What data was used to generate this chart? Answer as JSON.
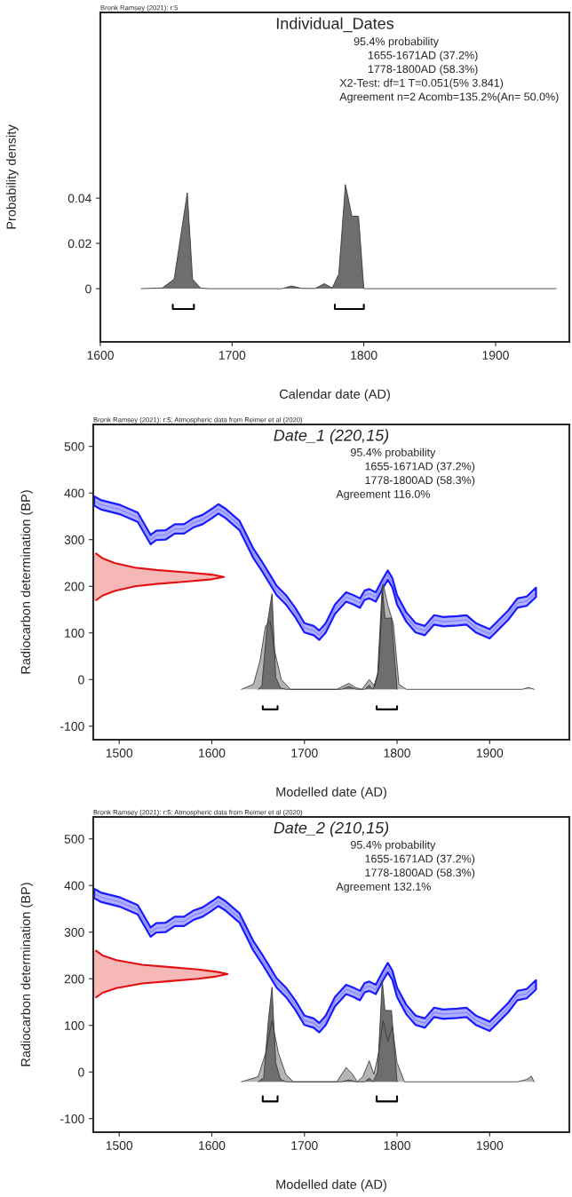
{
  "chart_data": [
    {
      "type": "area",
      "title": "Individual_Dates",
      "xlabel": "Calendar date (AD)",
      "ylabel": "Probability density",
      "annotations": [
        "Bronk Ramsey (2021): r:5",
        "95.4% probability",
        "1655-1671AD (37.2%)",
        "1778-1800AD (58.3%)",
        "X2-Test: df=1 T=0.051(5% 3.841)",
        "Agreement n=2 Acomb=135.2%(An= 50.0%)"
      ],
      "xlim": [
        1600,
        1956
      ],
      "ylim": [
        -0.0235,
        0.122
      ],
      "xticks": [
        1600,
        1700,
        1800,
        1900
      ],
      "yticks": [
        0,
        0.02,
        0.04
      ],
      "series": [
        {
          "color": "#6e6e6e",
          "x": [
            1631,
            1647,
            1656,
            1666,
            1670,
            1676,
            1682,
            1738,
            1745,
            1753,
            1763,
            1770,
            1776,
            1781,
            1786,
            1791,
            1796,
            1800,
            1946
          ],
          "values": [
            0,
            0.0003,
            0.0042,
            0.0424,
            0.0042,
            0.0003,
            0,
            0,
            0.0012,
            0.0001,
            0.0001,
            0.0022,
            0.0003,
            0.0065,
            0.046,
            0.032,
            0.032,
            0,
            0
          ]
        },
        {
          "type": "line",
          "color": "#000000",
          "x": [
            1655,
            1655,
            1671,
            1671
          ],
          "values": [
            -0.007,
            -0.009,
            -0.009,
            -0.007
          ]
        },
        {
          "type": "line",
          "color": "#000000",
          "x": [
            1778,
            1778,
            1800,
            1800
          ],
          "values": [
            -0.007,
            -0.009,
            -0.009,
            -0.007
          ]
        }
      ]
    },
    {
      "type": "area",
      "title": "Date_1 (220,15)",
      "xlabel": "Modelled date (AD)",
      "ylabel": "Radiocarbon determination (BP)",
      "annotations": [
        "Bronk Ramsey (2021): r:5; Atmospheric data from Reimer et al (2020)",
        "95.4% probability",
        "1655-1671AD (37.2%)",
        "1778-1800AD (58.3%)",
        "Agreement 116.0%"
      ],
      "xlim": [
        1472,
        1986
      ],
      "ylim": [
        -129,
        547
      ],
      "xticks": [
        1500,
        1600,
        1700,
        1800,
        1900
      ],
      "yticks": [
        -100,
        0,
        100,
        200,
        300,
        400,
        500
      ],
      "series": [
        {
          "color": "#b4b4b4",
          "x": [
            1632,
            1645,
            1652,
            1658,
            1663,
            1668,
            1675,
            1685,
            1735,
            1748,
            1755,
            1762,
            1770,
            1776,
            1780,
            1785,
            1790,
            1796,
            1802,
            1810,
            1935,
            1942,
            1948
          ],
          "values": [
            -21,
            -10,
            40,
            115,
            125,
            60,
            0,
            -21,
            -21,
            -8,
            -17,
            -21,
            0,
            -14,
            20,
            205,
            160,
            120,
            -10,
            -21,
            -21,
            -17,
            -21
          ]
        },
        {
          "color": "#6e6e6e",
          "x": [
            1650,
            1654,
            1660,
            1665,
            1669,
            1674,
            1680,
            1740,
            1748,
            1756,
            1765,
            1770,
            1774,
            1779,
            1784,
            1787,
            1794,
            1800
          ],
          "values": [
            -21,
            -14,
            121,
            184,
            5,
            -18,
            -21,
            -21,
            -15,
            -21,
            -21,
            -12,
            -21,
            12,
            201,
            131,
            132,
            -21
          ]
        },
        {
          "type": "line",
          "color": "#1a1aff",
          "x": [
            1473,
            1480,
            1500,
            1520,
            1534,
            1540,
            1550,
            1560,
            1570,
            1580,
            1590,
            1600,
            1607,
            1615,
            1630,
            1645,
            1655,
            1663,
            1670,
            1680,
            1690,
            1700,
            1710,
            1716,
            1723,
            1733,
            1745,
            1753,
            1760,
            1765,
            1770,
            1777,
            1785,
            1790,
            1795,
            1800,
            1810,
            1820,
            1830,
            1840,
            1850,
            1865,
            1875,
            1885,
            1900,
            1910,
            1920,
            1930,
            1940,
            1950
          ],
          "values": [
            383,
            375,
            365,
            348,
            300,
            309,
            310,
            323,
            323,
            336,
            343,
            356,
            366,
            356,
            330,
            270,
            240,
            214,
            191,
            171,
            144,
            111,
            105,
            95,
            111,
            151,
            177,
            171,
            164,
            181,
            184,
            177,
            207,
            224,
            207,
            171,
            134,
            111,
            105,
            128,
            124,
            126,
            128,
            111,
            98,
            118,
            138,
            164,
            168,
            187
          ],
          "upper": [
            393,
            385,
            375,
            358,
            310,
            319,
            320,
            333,
            333,
            346,
            353,
            366,
            376,
            366,
            340,
            280,
            250,
            224,
            201,
            181,
            154,
            121,
            115,
            105,
            121,
            161,
            187,
            181,
            174,
            191,
            194,
            187,
            217,
            234,
            217,
            181,
            144,
            121,
            115,
            138,
            134,
            136,
            138,
            121,
            108,
            128,
            148,
            174,
            178,
            197
          ],
          "lower": [
            373,
            365,
            355,
            338,
            290,
            299,
            300,
            313,
            313,
            326,
            333,
            346,
            356,
            346,
            320,
            260,
            230,
            204,
            181,
            161,
            134,
            101,
            95,
            85,
            101,
            141,
            167,
            161,
            154,
            171,
            174,
            167,
            197,
            214,
            197,
            161,
            124,
            101,
            95,
            118,
            114,
            116,
            118,
            101,
            88,
            108,
            128,
            154,
            158,
            177
          ]
        },
        {
          "type": "line",
          "color": "#e01010",
          "x": [
            1475,
            1482,
            1495,
            1517,
            1540,
            1572,
            1600,
            1613,
            1600,
            1572,
            1540,
            1517,
            1495,
            1482,
            1475
          ],
          "values": [
            270,
            260,
            250,
            240,
            235,
            230,
            225,
            220,
            215,
            210,
            205,
            200,
            190,
            180,
            170
          ]
        },
        {
          "type": "line",
          "color": "#000000",
          "x": [
            1655,
            1655,
            1671,
            1671
          ],
          "values": [
            -57,
            -64,
            -64,
            -57
          ]
        },
        {
          "type": "line",
          "color": "#000000",
          "x": [
            1778,
            1778,
            1800,
            1800
          ],
          "values": [
            -57,
            -64,
            -64,
            -57
          ]
        }
      ]
    },
    {
      "type": "area",
      "title": "Date_2 (210,15)",
      "xlabel": "Modelled date (AD)",
      "ylabel": "Radiocarbon determination (BP)",
      "annotations": [
        "Bronk Ramsey (2021): r:5; Atmospheric data from Reimer et al (2020)",
        "95.4% probability",
        "1655-1671AD (37.2%)",
        "1778-1800AD (58.3%)",
        "Agreement 132.1%"
      ],
      "xlim": [
        1472,
        1986
      ],
      "ylim": [
        -129,
        547
      ],
      "xticks": [
        1500,
        1600,
        1700,
        1800,
        1900
      ],
      "yticks": [
        -100,
        0,
        100,
        200,
        300,
        400,
        500
      ],
      "series": [
        {
          "color": "#b4b4b4",
          "x": [
            1632,
            1650,
            1658,
            1665,
            1672,
            1680,
            1688,
            1735,
            1745,
            1752,
            1757,
            1763,
            1770,
            1775,
            1780,
            1785,
            1790,
            1795,
            1800,
            1808,
            1930,
            1940,
            1945,
            1948
          ],
          "values": [
            -21,
            -10,
            40,
            110,
            40,
            -5,
            -21,
            -21,
            10,
            -5,
            -21,
            -10,
            24,
            -5,
            40,
            110,
            66,
            97,
            20,
            -21,
            -21,
            -16,
            -9,
            -21
          ]
        },
        {
          "color": "#6e6e6e",
          "x": [
            1650,
            1656,
            1661,
            1665,
            1669,
            1674,
            1680,
            1740,
            1748,
            1756,
            1765,
            1770,
            1774,
            1779,
            1784,
            1787,
            1794,
            1800
          ],
          "values": [
            -21,
            -12,
            110,
            182,
            20,
            -15,
            -21,
            -21,
            -17,
            -21,
            -21,
            -13,
            -21,
            0,
            197,
            132,
            132,
            -21
          ]
        },
        {
          "type": "line",
          "color": "#1a1aff",
          "x": [
            1473,
            1480,
            1500,
            1520,
            1534,
            1540,
            1550,
            1560,
            1570,
            1580,
            1590,
            1600,
            1607,
            1615,
            1630,
            1645,
            1655,
            1663,
            1670,
            1680,
            1690,
            1700,
            1710,
            1716,
            1723,
            1733,
            1745,
            1753,
            1760,
            1765,
            1770,
            1777,
            1785,
            1790,
            1795,
            1800,
            1810,
            1820,
            1830,
            1840,
            1850,
            1865,
            1875,
            1885,
            1900,
            1910,
            1920,
            1930,
            1940,
            1950
          ],
          "values": [
            383,
            375,
            365,
            348,
            300,
            309,
            310,
            323,
            323,
            336,
            343,
            356,
            366,
            356,
            330,
            270,
            240,
            214,
            191,
            171,
            144,
            111,
            105,
            95,
            111,
            151,
            177,
            171,
            164,
            181,
            184,
            177,
            207,
            224,
            207,
            171,
            134,
            111,
            105,
            128,
            124,
            126,
            128,
            111,
            98,
            118,
            138,
            164,
            168,
            187
          ],
          "upper": [
            393,
            385,
            375,
            358,
            310,
            319,
            320,
            333,
            333,
            346,
            353,
            366,
            376,
            366,
            340,
            280,
            250,
            224,
            201,
            181,
            154,
            121,
            115,
            105,
            121,
            161,
            187,
            181,
            174,
            191,
            194,
            187,
            217,
            234,
            217,
            181,
            144,
            121,
            115,
            138,
            134,
            136,
            138,
            121,
            108,
            128,
            148,
            174,
            178,
            197
          ],
          "lower": [
            373,
            365,
            355,
            338,
            290,
            299,
            300,
            313,
            313,
            326,
            333,
            346,
            356,
            346,
            320,
            260,
            230,
            204,
            181,
            161,
            134,
            101,
            95,
            85,
            101,
            141,
            167,
            161,
            154,
            171,
            174,
            167,
            197,
            214,
            197,
            161,
            124,
            101,
            95,
            118,
            114,
            116,
            118,
            101,
            88,
            108,
            128,
            154,
            158,
            177
          ]
        },
        {
          "type": "line",
          "color": "#e01010",
          "x": [
            1475,
            1482,
            1497,
            1525,
            1555,
            1585,
            1605,
            1617,
            1605,
            1585,
            1555,
            1525,
            1497,
            1482,
            1475
          ],
          "values": [
            260,
            250,
            240,
            230,
            225,
            220,
            215,
            210,
            205,
            200,
            195,
            190,
            180,
            170,
            160
          ]
        },
        {
          "type": "line",
          "color": "#000000",
          "x": [
            1655,
            1655,
            1671,
            1671
          ],
          "values": [
            -52,
            -63,
            -63,
            -52
          ]
        },
        {
          "type": "line",
          "color": "#000000",
          "x": [
            1778,
            1778,
            1800,
            1800
          ],
          "values": [
            -52,
            -63,
            -63,
            -52
          ]
        }
      ]
    }
  ]
}
